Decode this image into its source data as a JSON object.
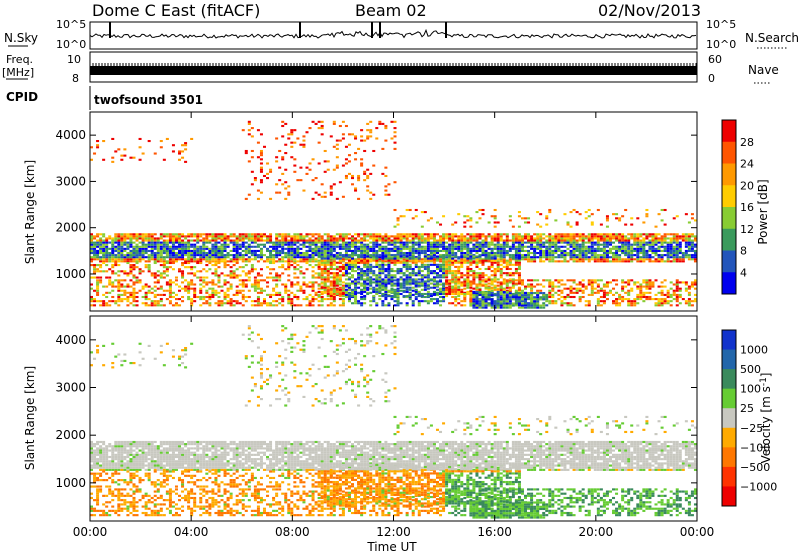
{
  "header": {
    "station": "Dome C East (fitACF)",
    "beam": "Beam 02",
    "date": "02/Nov/2013"
  },
  "strips": {
    "nsky_label": "N.Sky",
    "nsearch_label": "N.Search",
    "nsky_ticks": [
      "10^5",
      "10^0"
    ],
    "freq_label": "Freq.",
    "freq_unit": "[MHz]",
    "freq_ticks": [
      "10",
      "8"
    ],
    "nave_label": "Nave",
    "nave_ticks": [
      "60",
      "0"
    ],
    "cpid_label": "CPID",
    "cpid_value": "twofsound 3501"
  },
  "chart_data": [
    {
      "type": "heatmap",
      "name": "power",
      "xlabel": "Time UT",
      "ylabel": "Slant Range [km]",
      "x_ticks": [
        "00:00",
        "04:00",
        "08:00",
        "12:00",
        "16:00",
        "20:00",
        "00:00"
      ],
      "y_ticks": [
        1000,
        2000,
        3000,
        4000
      ],
      "ylim": [
        200,
        4500
      ],
      "colorbar": {
        "label": "Power [dB]",
        "tick_labels": [
          "4",
          "8",
          "12",
          "16",
          "20",
          "24",
          "28"
        ],
        "colors": [
          "#0000ee",
          "#2255bb",
          "#3a9a5c",
          "#88cc33",
          "#ffcc00",
          "#ff9900",
          "#ff5500",
          "#ee0000"
        ]
      }
    },
    {
      "type": "heatmap",
      "name": "velocity",
      "xlabel": "Time UT",
      "ylabel": "Slant Range [km]",
      "x_ticks": [
        "00:00",
        "04:00",
        "08:00",
        "12:00",
        "16:00",
        "20:00",
        "00:00"
      ],
      "y_ticks": [
        1000,
        2000,
        3000,
        4000
      ],
      "ylim": [
        200,
        4500
      ],
      "colorbar": {
        "label": "Velocity [m s",
        "label_exp": "-1",
        "label_end": "]",
        "tick_labels": [
          "1000",
          "500",
          "100",
          "25",
          "−25",
          "−100",
          "−500",
          "−1000"
        ],
        "colors": [
          "#1133cc",
          "#2266aa",
          "#3a8a5c",
          "#66cc33",
          "#c8c8c0",
          "#ffaa00",
          "#ff7700",
          "#ff3300",
          "#ee0000"
        ]
      }
    }
  ]
}
